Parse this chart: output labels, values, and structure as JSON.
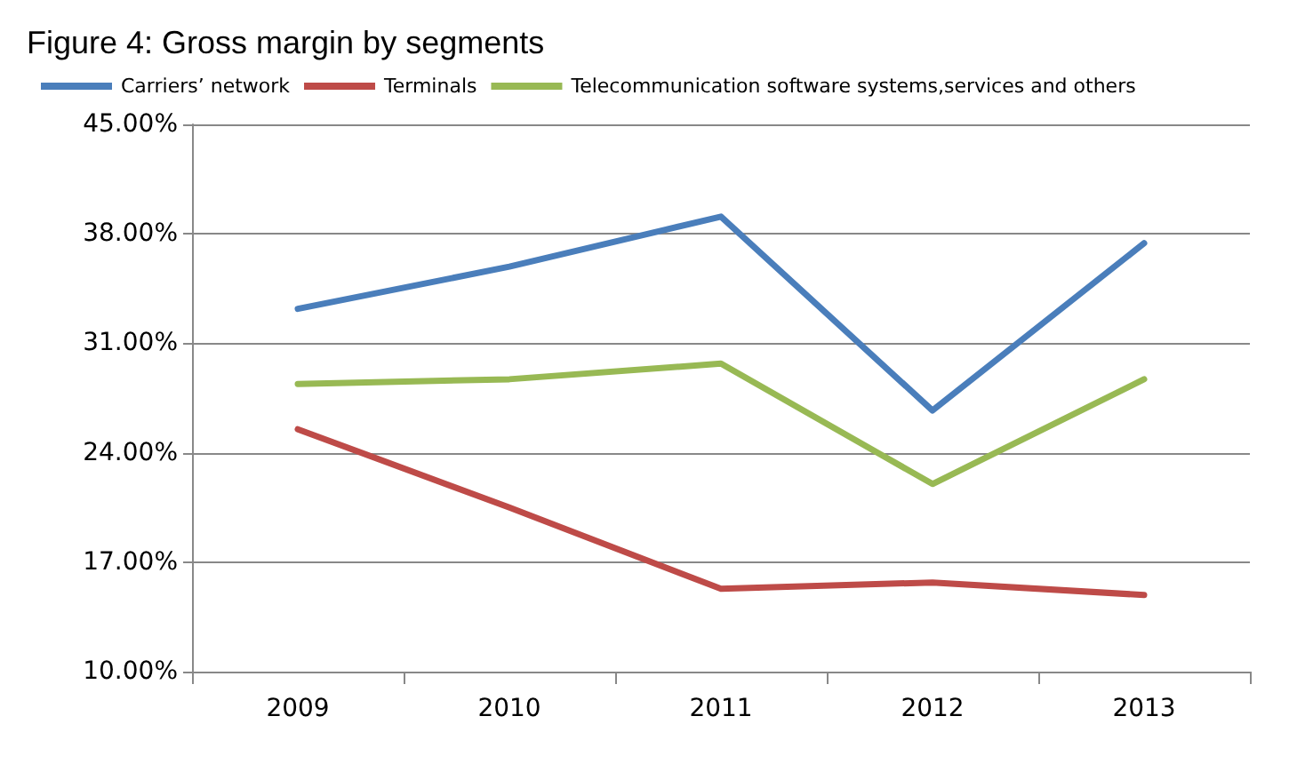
{
  "chart_data": {
    "type": "line",
    "title": "Figure 4: Gross margin by segments",
    "categories": [
      "2009",
      "2010",
      "2011",
      "2012",
      "2013"
    ],
    "series": [
      {
        "name": "Carriers’ network",
        "color": "#4a7ebb",
        "values": [
          33.2,
          35.9,
          39.1,
          26.7,
          37.4
        ]
      },
      {
        "name": "Terminals",
        "color": "#be4b48",
        "values": [
          25.5,
          20.5,
          15.3,
          15.7,
          14.9
        ]
      },
      {
        "name": "Telecommunication software systems,services and others",
        "color": "#98b954",
        "values": [
          28.4,
          28.7,
          29.7,
          22.0,
          28.7
        ]
      }
    ],
    "ylim": [
      10,
      45
    ],
    "yticks": [
      {
        "value": 10,
        "label": "10.00%"
      },
      {
        "value": 17,
        "label": "17.00%"
      },
      {
        "value": 24,
        "label": "24.00%"
      },
      {
        "value": 31,
        "label": "31.00%"
      },
      {
        "value": 38,
        "label": "38.00%"
      },
      {
        "value": 45,
        "label": "45.00%"
      }
    ],
    "grid": "y",
    "legend": "top",
    "marker": "none",
    "line_style": "solid"
  }
}
